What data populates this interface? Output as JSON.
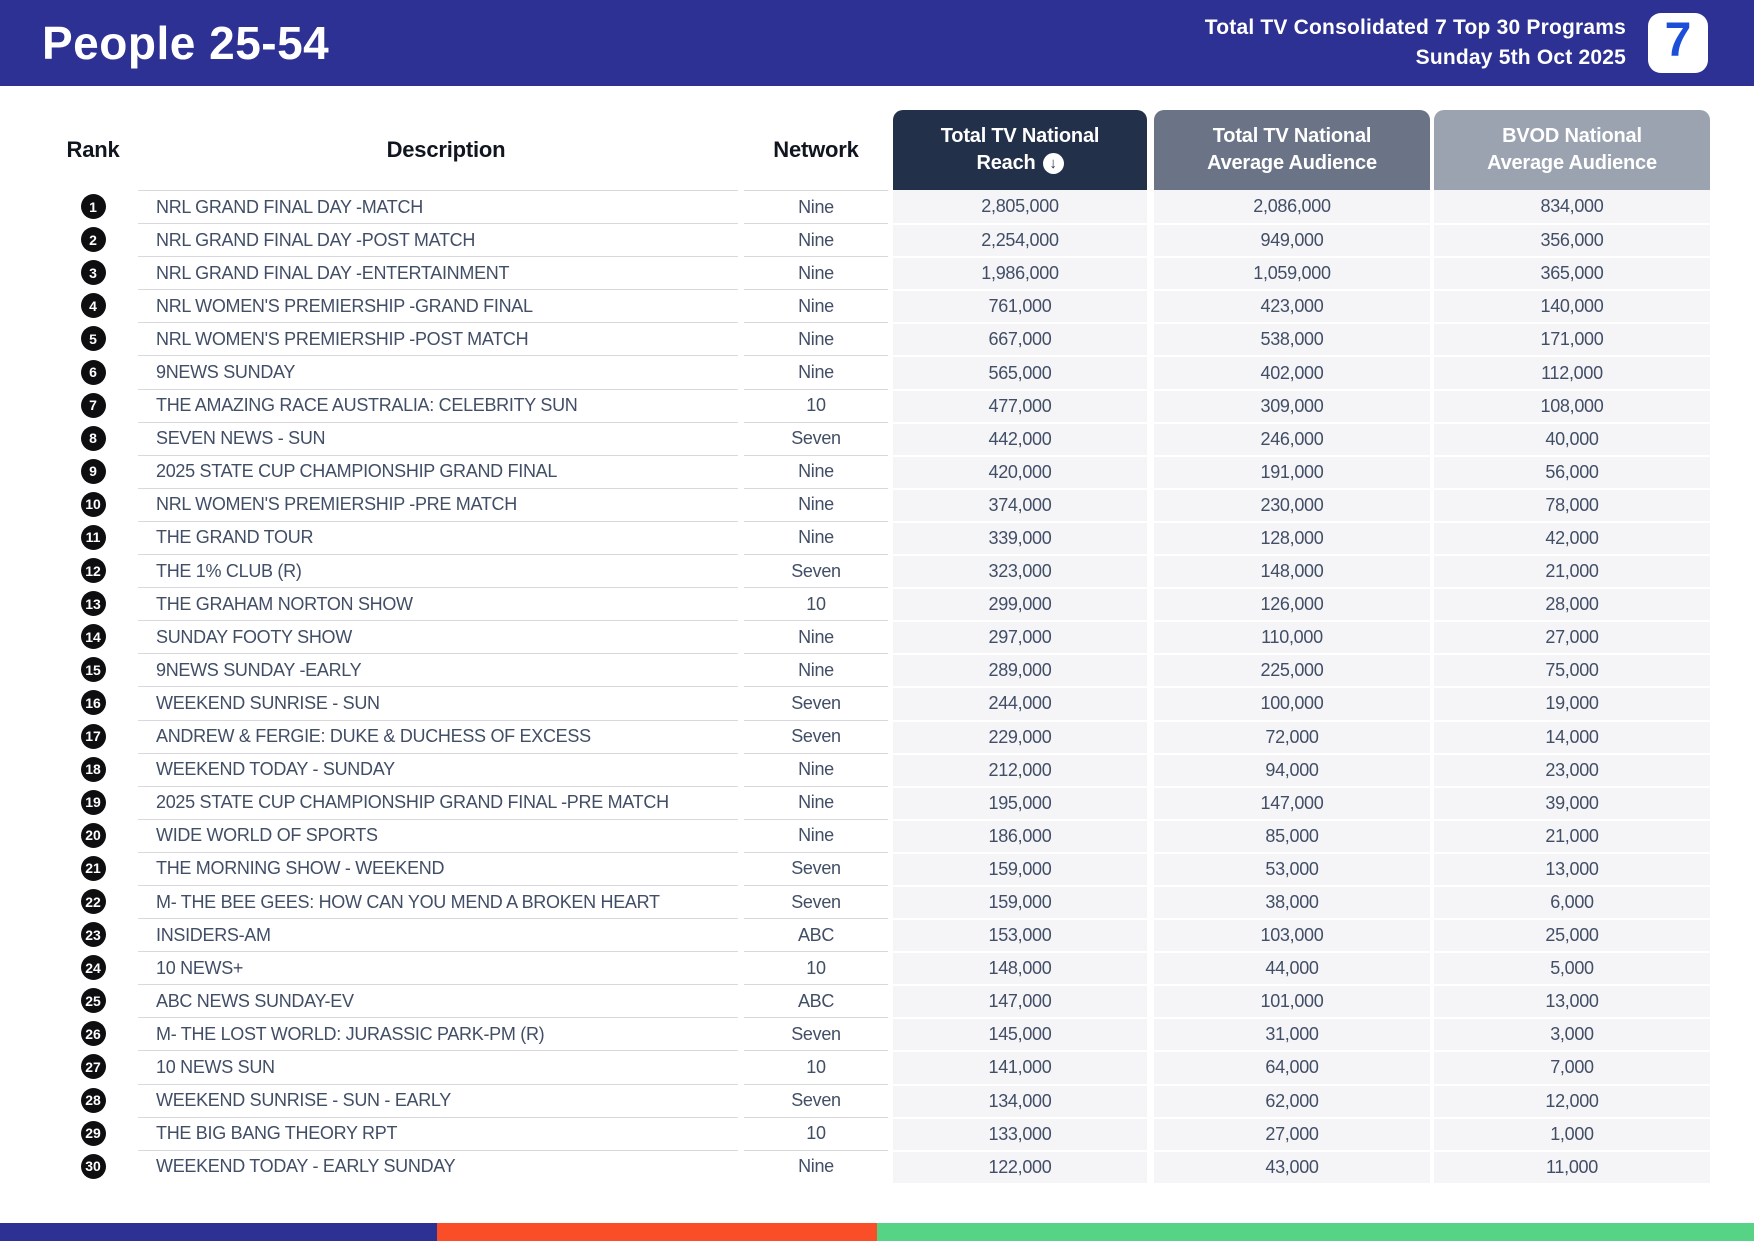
{
  "header": {
    "title": "People 25-54",
    "subtitle_line1": "Total TV Consolidated 7 Top 30 Programs",
    "subtitle_line2": "Sunday 5th Oct 2025",
    "logo_text": "7"
  },
  "table": {
    "columns": {
      "rank": "Rank",
      "description": "Description",
      "network": "Network",
      "reach": {
        "line1": "Total TV National",
        "line2": "Reach",
        "sort_icon": "circled-down-arrow",
        "sort_glyph": "↓"
      },
      "avg": {
        "line1": "Total TV National",
        "line2": "Average Audience"
      },
      "bvod": {
        "line1": "BVOD National",
        "line2": "Average Audience"
      }
    },
    "rows": [
      {
        "rank": "1",
        "description": "NRL GRAND FINAL DAY -MATCH",
        "network": "Nine",
        "reach": "2,805,000",
        "avg": "2,086,000",
        "bvod": "834,000"
      },
      {
        "rank": "2",
        "description": "NRL GRAND FINAL DAY -POST MATCH",
        "network": "Nine",
        "reach": "2,254,000",
        "avg": "949,000",
        "bvod": "356,000"
      },
      {
        "rank": "3",
        "description": "NRL GRAND FINAL DAY -ENTERTAINMENT",
        "network": "Nine",
        "reach": "1,986,000",
        "avg": "1,059,000",
        "bvod": "365,000"
      },
      {
        "rank": "4",
        "description": "NRL WOMEN'S PREMIERSHIP -GRAND FINAL",
        "network": "Nine",
        "reach": "761,000",
        "avg": "423,000",
        "bvod": "140,000"
      },
      {
        "rank": "5",
        "description": "NRL WOMEN'S PREMIERSHIP -POST MATCH",
        "network": "Nine",
        "reach": "667,000",
        "avg": "538,000",
        "bvod": "171,000"
      },
      {
        "rank": "6",
        "description": "9NEWS SUNDAY",
        "network": "Nine",
        "reach": "565,000",
        "avg": "402,000",
        "bvod": "112,000"
      },
      {
        "rank": "7",
        "description": "THE AMAZING RACE AUSTRALIA: CELEBRITY SUN",
        "network": "10",
        "reach": "477,000",
        "avg": "309,000",
        "bvod": "108,000"
      },
      {
        "rank": "8",
        "description": "SEVEN NEWS - SUN",
        "network": "Seven",
        "reach": "442,000",
        "avg": "246,000",
        "bvod": "40,000"
      },
      {
        "rank": "9",
        "description": "2025 STATE CUP CHAMPIONSHIP GRAND FINAL",
        "network": "Nine",
        "reach": "420,000",
        "avg": "191,000",
        "bvod": "56,000"
      },
      {
        "rank": "10",
        "description": "NRL WOMEN'S PREMIERSHIP -PRE MATCH",
        "network": "Nine",
        "reach": "374,000",
        "avg": "230,000",
        "bvod": "78,000"
      },
      {
        "rank": "11",
        "description": "THE GRAND TOUR",
        "network": "Nine",
        "reach": "339,000",
        "avg": "128,000",
        "bvod": "42,000"
      },
      {
        "rank": "12",
        "description": "THE 1% CLUB (R)",
        "network": "Seven",
        "reach": "323,000",
        "avg": "148,000",
        "bvod": "21,000"
      },
      {
        "rank": "13",
        "description": "THE GRAHAM NORTON SHOW",
        "network": "10",
        "reach": "299,000",
        "avg": "126,000",
        "bvod": "28,000"
      },
      {
        "rank": "14",
        "description": "SUNDAY FOOTY SHOW",
        "network": "Nine",
        "reach": "297,000",
        "avg": "110,000",
        "bvod": "27,000"
      },
      {
        "rank": "15",
        "description": "9NEWS SUNDAY -EARLY",
        "network": "Nine",
        "reach": "289,000",
        "avg": "225,000",
        "bvod": "75,000"
      },
      {
        "rank": "16",
        "description": "WEEKEND SUNRISE - SUN",
        "network": "Seven",
        "reach": "244,000",
        "avg": "100,000",
        "bvod": "19,000"
      },
      {
        "rank": "17",
        "description": "ANDREW & FERGIE: DUKE & DUCHESS OF EXCESS",
        "network": "Seven",
        "reach": "229,000",
        "avg": "72,000",
        "bvod": "14,000"
      },
      {
        "rank": "18",
        "description": "WEEKEND TODAY - SUNDAY",
        "network": "Nine",
        "reach": "212,000",
        "avg": "94,000",
        "bvod": "23,000"
      },
      {
        "rank": "19",
        "description": "2025 STATE CUP CHAMPIONSHIP GRAND FINAL -PRE MATCH",
        "network": "Nine",
        "reach": "195,000",
        "avg": "147,000",
        "bvod": "39,000"
      },
      {
        "rank": "20",
        "description": "WIDE WORLD OF SPORTS",
        "network": "Nine",
        "reach": "186,000",
        "avg": "85,000",
        "bvod": "21,000"
      },
      {
        "rank": "21",
        "description": "THE MORNING SHOW - WEEKEND",
        "network": "Seven",
        "reach": "159,000",
        "avg": "53,000",
        "bvod": "13,000"
      },
      {
        "rank": "22",
        "description": "M- THE BEE GEES: HOW CAN YOU MEND A BROKEN HEART",
        "network": "Seven",
        "reach": "159,000",
        "avg": "38,000",
        "bvod": "6,000"
      },
      {
        "rank": "23",
        "description": "INSIDERS-AM",
        "network": "ABC",
        "reach": "153,000",
        "avg": "103,000",
        "bvod": "25,000"
      },
      {
        "rank": "24",
        "description": "10 NEWS+",
        "network": "10",
        "reach": "148,000",
        "avg": "44,000",
        "bvod": "5,000"
      },
      {
        "rank": "25",
        "description": "ABC NEWS SUNDAY-EV",
        "network": "ABC",
        "reach": "147,000",
        "avg": "101,000",
        "bvod": "13,000"
      },
      {
        "rank": "26",
        "description": "M- THE LOST WORLD: JURASSIC PARK-PM (R)",
        "network": "Seven",
        "reach": "145,000",
        "avg": "31,000",
        "bvod": "3,000"
      },
      {
        "rank": "27",
        "description": "10 NEWS SUN",
        "network": "10",
        "reach": "141,000",
        "avg": "64,000",
        "bvod": "7,000"
      },
      {
        "rank": "28",
        "description": "WEEKEND SUNRISE - SUN - EARLY",
        "network": "Seven",
        "reach": "134,000",
        "avg": "62,000",
        "bvod": "12,000"
      },
      {
        "rank": "29",
        "description": "THE BIG BANG THEORY RPT",
        "network": "10",
        "reach": "133,000",
        "avg": "27,000",
        "bvod": "1,000"
      },
      {
        "rank": "30",
        "description": "WEEKEND TODAY - EARLY SUNDAY",
        "network": "Nine",
        "reach": "122,000",
        "avg": "43,000",
        "bvod": "11,000"
      }
    ]
  },
  "colors": {
    "banner_blue": "#2d3193",
    "logo_seven_blue": "#1c4ed8",
    "reach_header": "#233049",
    "avg_header": "#6b7487",
    "bvod_header": "#9ba3b1",
    "cell_background": "#f5f5f7",
    "text_slate": "#414e66",
    "footer_orange": "#f94e27",
    "footer_green": "#57d385"
  },
  "footer": {
    "segments": [
      {
        "color": "#2d3193",
        "width": "24.9%"
      },
      {
        "color": "#f94e27",
        "width": "25.1%"
      },
      {
        "color": "#57d385",
        "width": "50%"
      }
    ]
  }
}
